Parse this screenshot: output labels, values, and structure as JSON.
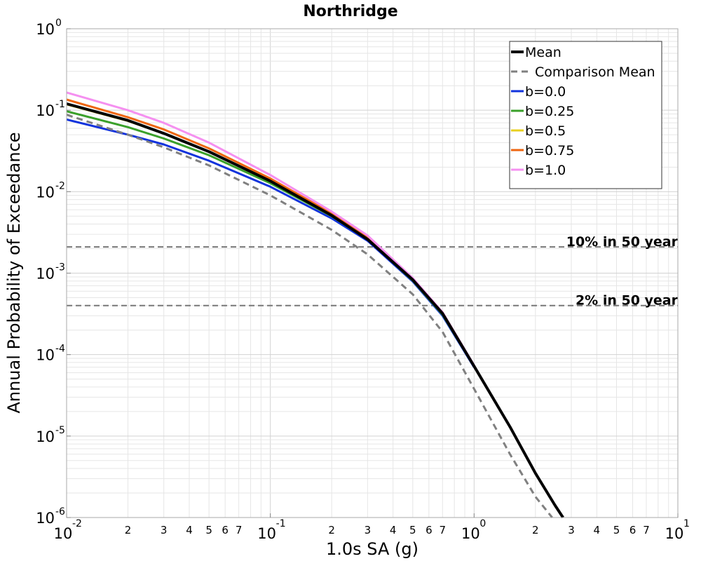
{
  "chart_data": {
    "type": "line",
    "title": "Northridge",
    "xlabel": "1.0s SA (g)",
    "ylabel": "Annual Probability of Exceedance",
    "xscale": "log",
    "yscale": "log",
    "xlim": [
      0.01,
      10
    ],
    "ylim": [
      1e-06,
      1
    ],
    "grid": true,
    "legend_position": "top-right",
    "x_major_ticks": [
      {
        "base": "10",
        "exp": "-2"
      },
      {
        "base": "10",
        "exp": "-1"
      },
      {
        "base": "10",
        "exp": "0"
      },
      {
        "base": "10",
        "exp": "1"
      }
    ],
    "y_major_ticks": [
      {
        "base": "10",
        "exp": "0"
      },
      {
        "base": "10",
        "exp": "-1"
      },
      {
        "base": "10",
        "exp": "-2"
      },
      {
        "base": "10",
        "exp": "-3"
      },
      {
        "base": "10",
        "exp": "-4"
      },
      {
        "base": "10",
        "exp": "-5"
      },
      {
        "base": "10",
        "exp": "-6"
      }
    ],
    "x_minor_tick_labels": [
      "2",
      "3",
      "4",
      "5",
      "6",
      "7"
    ],
    "reference_lines": [
      {
        "label": "10% in 50 year",
        "y": 0.0021,
        "color": "#777777"
      },
      {
        "label": "2% in 50 year",
        "y": 0.0004,
        "color": "#777777"
      }
    ],
    "series": [
      {
        "name": "Mean",
        "color": "#000000",
        "style": "solid",
        "width": 4,
        "x": [
          0.01,
          0.02,
          0.03,
          0.05,
          0.1,
          0.2,
          0.3,
          0.5,
          0.7,
          1.0,
          1.5,
          2.0,
          2.5,
          3.0
        ],
        "y": [
          0.12,
          0.075,
          0.052,
          0.031,
          0.0135,
          0.0051,
          0.0026,
          0.00083,
          0.00032,
          7.2e-05,
          1.3e-05,
          3.5e-06,
          1.4e-06,
          7e-07
        ]
      },
      {
        "name": "Comparison Mean",
        "color": "#808080",
        "style": "dashed",
        "width": 3,
        "x": [
          0.01,
          0.02,
          0.03,
          0.05,
          0.1,
          0.2,
          0.3,
          0.5,
          0.7,
          1.0,
          1.5,
          2.0,
          2.5,
          3.0
        ],
        "y": [
          0.088,
          0.05,
          0.035,
          0.021,
          0.009,
          0.0034,
          0.0017,
          0.00055,
          0.00019,
          3.8e-05,
          6e-06,
          1.8e-06,
          9e-07,
          5e-07
        ]
      },
      {
        "name": "b=0.0",
        "color": "#1133dd",
        "style": "solid",
        "width": 3,
        "x": [
          0.01,
          0.02,
          0.03,
          0.05,
          0.1,
          0.2,
          0.3,
          0.5,
          0.7,
          1.0
        ],
        "y": [
          0.077,
          0.05,
          0.038,
          0.024,
          0.0115,
          0.0047,
          0.0025,
          0.00079,
          0.0003,
          7e-05
        ]
      },
      {
        "name": "b=0.25",
        "color": "#3aa02a",
        "style": "solid",
        "width": 3,
        "x": [
          0.01,
          0.02,
          0.03,
          0.05,
          0.1,
          0.2,
          0.3,
          0.5,
          0.7,
          1.0
        ],
        "y": [
          0.097,
          0.062,
          0.045,
          0.028,
          0.0127,
          0.005,
          0.0026,
          0.00081,
          0.00031,
          7.1e-05
        ]
      },
      {
        "name": "b=0.5",
        "color": "#e8d020",
        "style": "solid",
        "width": 3,
        "x": [
          0.01,
          0.02,
          0.03,
          0.05,
          0.1,
          0.2,
          0.3,
          0.5,
          0.7,
          1.0
        ],
        "y": [
          0.118,
          0.074,
          0.052,
          0.031,
          0.0136,
          0.0052,
          0.0027,
          0.00083,
          0.00032,
          7.2e-05
        ]
      },
      {
        "name": "b=0.75",
        "color": "#ee6611",
        "style": "solid",
        "width": 3,
        "x": [
          0.01,
          0.02,
          0.03,
          0.05,
          0.1,
          0.2,
          0.3,
          0.5,
          0.7,
          1.0
        ],
        "y": [
          0.135,
          0.082,
          0.058,
          0.034,
          0.0145,
          0.0054,
          0.0028,
          0.00085,
          0.00033,
          7.3e-05
        ]
      },
      {
        "name": "b=1.0",
        "color": "#f590f0",
        "style": "solid",
        "width": 3,
        "x": [
          0.01,
          0.02,
          0.03,
          0.05,
          0.1,
          0.2,
          0.3,
          0.5,
          0.7,
          1.0
        ],
        "y": [
          0.165,
          0.1,
          0.07,
          0.04,
          0.016,
          0.0057,
          0.0029,
          0.00087,
          0.00033,
          7.4e-05
        ]
      }
    ]
  }
}
